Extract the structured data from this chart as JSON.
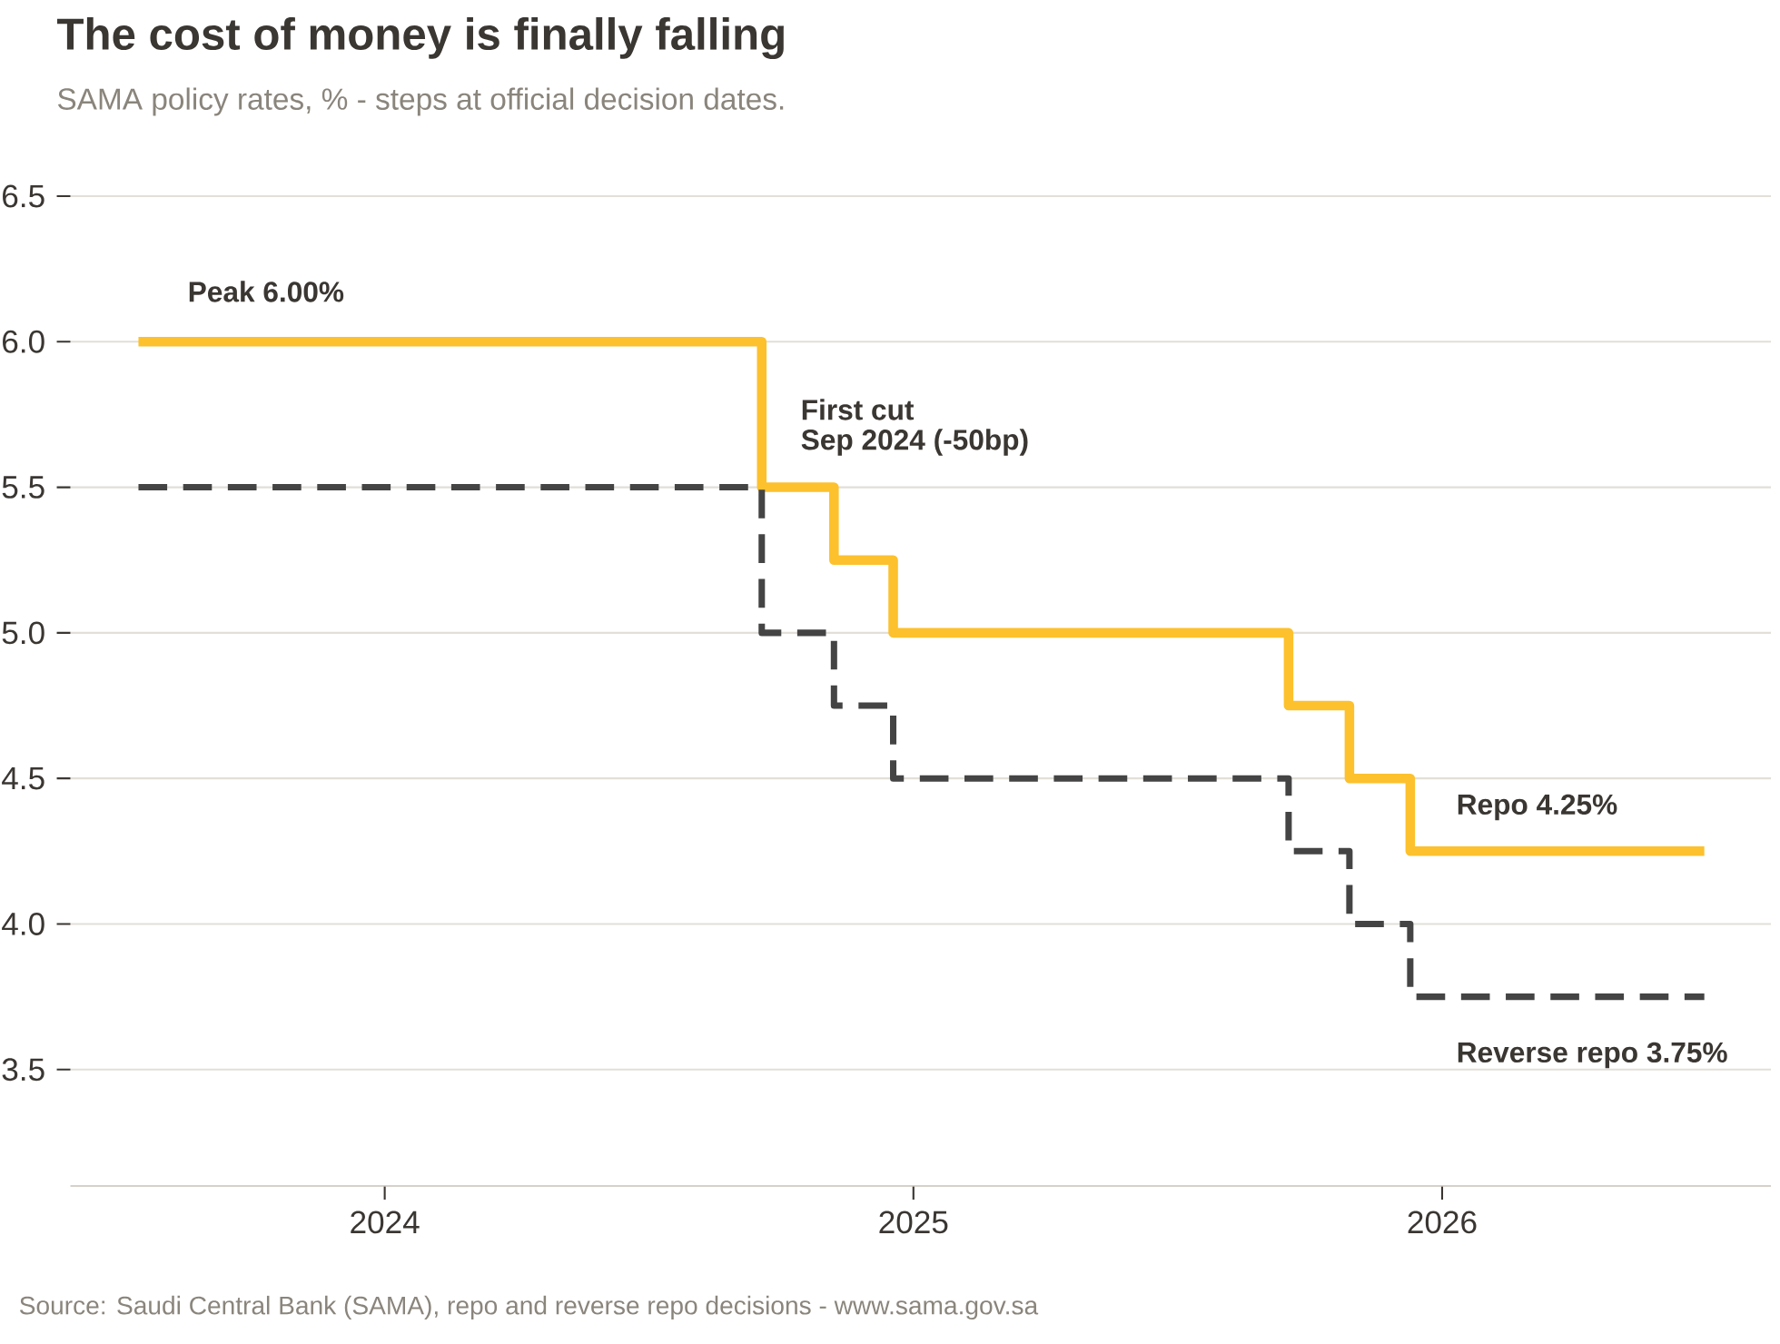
{
  "chart_data": {
    "type": "step",
    "title": "The cost of money is finally falling",
    "subtitle": "SAMA policy rates, % - steps at official decision dates.",
    "x": [
      "2023-07-15",
      "2024-09-18",
      "2024-11-07",
      "2024-12-18",
      "2025-09-17",
      "2025-10-29",
      "2025-12-10",
      "2026-07-01"
    ],
    "series": [
      {
        "color": "#fcc12d",
        "line_style": "solid",
        "values": [
          6.0,
          5.5,
          5.25,
          5.0,
          4.75,
          4.5,
          4.25,
          4.25
        ]
      },
      {
        "color": "#444444",
        "line_style": "dashed",
        "values": [
          5.5,
          5.0,
          4.75,
          4.5,
          4.25,
          4.0,
          3.75,
          3.75
        ]
      }
    ],
    "xlim": [
      "2023-05-29",
      "2026-08-16"
    ],
    "xticks": [
      "2024",
      "2025",
      "2026"
    ],
    "ylim": [
      3.1,
      6.5
    ],
    "yticks": [
      {
        "value": 3.5,
        "label": "3.5"
      },
      {
        "value": 4.0,
        "label": "4.0"
      },
      {
        "value": 4.5,
        "label": "4.5"
      },
      {
        "value": 5.0,
        "label": "5.0"
      },
      {
        "value": 5.5,
        "label": "5.5"
      },
      {
        "value": 6.0,
        "label": "6.0"
      },
      {
        "value": 6.5,
        "label": "6.5"
      }
    ],
    "grid": "y",
    "annotations": [
      "Peak 6.00%",
      "First cut",
      "Sep 2024 (-50bp)",
      "Repo 4.25%",
      "Reverse repo 3.75%",
      "Source: Saudi Central Bank (SAMA), repo and reverse repo decisions  -  www.sama.gov.sa"
    ]
  }
}
